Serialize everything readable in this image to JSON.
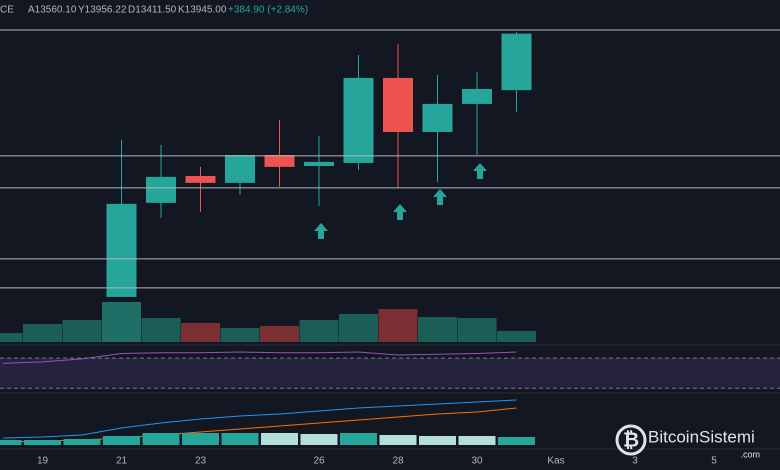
{
  "chart_data": {
    "type": "candlestick",
    "header": {
      "symbol": "CE",
      "quote": [
        "A13560.10",
        "Y13956.22",
        "D13411.50",
        "K13945.00",
        "+384.90 (+2.84%)"
      ]
    },
    "categories": [
      null,
      "19",
      null,
      "21",
      null,
      "23",
      null,
      null,
      "26",
      null,
      "28",
      null,
      "30",
      null,
      "Kas",
      null,
      "3",
      null,
      "5"
    ],
    "open": [
      null,
      null,
      null,
      12151,
      12792,
      12975,
      12928,
      13118,
      13043,
      13064,
      13643,
      13275,
      13466,
      13560.1,
      null,
      null,
      null,
      null,
      null
    ],
    "high": [
      null,
      null,
      null,
      13221,
      13187,
      13037,
      13118,
      13357,
      13248,
      13799,
      13874,
      13663,
      13684,
      13956.22,
      null,
      null,
      null,
      null,
      null
    ],
    "low": [
      null,
      null,
      null,
      12151,
      12690,
      12730,
      12846,
      12900,
      12771,
      13016,
      12894,
      12934,
      13118,
      13411.5,
      null,
      null,
      null,
      null,
      null
    ],
    "close": [
      null,
      null,
      null,
      12785,
      12969,
      12928,
      13118,
      13037,
      13071,
      13643,
      13275,
      13466,
      13568,
      13945.0,
      null,
      null,
      null,
      null,
      null
    ],
    "ylim": [
      12130,
      14174
    ],
    "hlines": [
      13970,
      13112,
      12894,
      12410,
      12213
    ],
    "up_color": "#26a69a",
    "down_color": "#ef5350",
    "volume": {
      "values": [
        9,
        18,
        22,
        40,
        24,
        19,
        14,
        16,
        22,
        28,
        33,
        25,
        24,
        11,
        null,
        null,
        null,
        null,
        null
      ],
      "colors": [
        "#1b5e57",
        "#1b5e57",
        "#1b5e57",
        "#1f6f66",
        "#1b5e57",
        "#7a2f33",
        "#1b5e57",
        "#7a2f33",
        "#1b5e57",
        "#1b5e57",
        "#7a2f33",
        "#1b5e57",
        "#1b5e57",
        "#1b5e57",
        null,
        null,
        null,
        null,
        null
      ],
      "ylim": [
        0,
        45
      ]
    },
    "rsi": {
      "values": [
        63,
        65,
        69,
        76,
        77,
        77,
        78,
        77,
        77,
        78,
        74,
        75,
        76,
        78,
        null,
        null,
        null,
        null,
        null
      ],
      "ylim": [
        25,
        86
      ],
      "levels": [
        30,
        70
      ],
      "color": "#9c4fc4"
    },
    "macd": {
      "histogram": [
        5,
        5,
        6,
        9,
        12,
        12,
        12,
        12,
        11,
        12,
        10,
        9,
        9,
        8,
        null,
        null,
        null,
        null,
        null
      ],
      "hist_colors": [
        "#26a69a",
        "#26a69a",
        "#26a69a",
        "#26a69a",
        "#26a69a",
        "#26a69a",
        "#26a69a",
        "#b2dfdb",
        "#b2dfdb",
        "#26a69a",
        "#b2dfdb",
        "#b2dfdb",
        "#b2dfdb",
        "#26a69a",
        null,
        null,
        null,
        null,
        null
      ],
      "macd": [
        7,
        8,
        10,
        17,
        22,
        26,
        29,
        31,
        34,
        37,
        39,
        41,
        43,
        45,
        null,
        null,
        null,
        null,
        null
      ],
      "signal": [
        3,
        4,
        5,
        7,
        10,
        13,
        16,
        19,
        22,
        25,
        28,
        31,
        33,
        37,
        null,
        null,
        null,
        null,
        null
      ],
      "macd_color": "#2196f3",
      "signal_color": "#ff6d00",
      "ylim": [
        0,
        50
      ]
    },
    "watermark": {
      "brand": "BitcoinSistemi",
      "suffix": ".com"
    }
  }
}
